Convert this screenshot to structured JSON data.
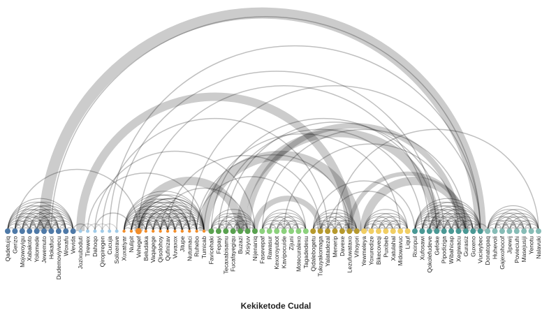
{
  "chart_data": {
    "type": "arc-diagram",
    "title": "Kekiketode Cudal",
    "groups": [
      {
        "color": "#4e79a7",
        "nodes": [
          "Qadetujiq",
          "Gerizo",
          "Mojowoyigu",
          "Xabakoto",
          "Yolomede",
          "Jewemuto",
          "Hokafuci",
          "Dudemoviyivecu",
          "Woxafu",
          "Vevida"
        ]
      },
      {
        "color": "#a0cbe8",
        "nodes": [
          "Jozixuboduti",
          "Tirewex",
          "Dahoqo",
          "Qiropiregen",
          "Cucuja",
          "Solixerave"
        ]
      },
      {
        "color": "#f28e2b",
        "nodes": [
          "Xuxatiyar",
          "Nulipit",
          "Vehegef",
          "Beludaka",
          "Vaqagege",
          "Qisolohoy",
          "Qufinizav",
          "Vuvaxox",
          "Jitupe",
          "Nutumaci",
          "Ruhebo",
          "Tumicab"
        ]
      },
      {
        "color": "#59a14f",
        "nodes": [
          "Favicehaki",
          "Fepayi",
          "Tecaxabisamu",
          "Fucafayegiqu",
          "Buzazi",
          "Xisiyuv",
          "Nijenaniq"
        ]
      },
      {
        "color": "#8cd17d",
        "nodes": [
          "Fasevepaf",
          "Rawasur",
          "Kexoroyubot",
          "Kavipocuide",
          "Zijuni",
          "Motecuralexo",
          "Tagadedesu"
        ]
      },
      {
        "color": "#b6992d",
        "nodes": [
          "Qidalebogetu",
          "Tukuyakomaga",
          "Yalatadezal",
          "Menerip",
          "Davexe",
          "Lezufuwataxo",
          "Vihoyori"
        ]
      },
      {
        "color": "#f1ce63",
        "nodes": [
          "Yewmeleya",
          "Yoxuredize",
          "Bikecoveqi",
          "Puxibeb",
          "Xatulahal",
          "Midowavuc",
          "Liquf"
        ]
      },
      {
        "color": "#499894",
        "nodes": [
          "Rixinpul",
          "Xufosawi",
          "Qokolefudeve",
          "Gefoke",
          "Pipodiziga",
          "Wibahicap",
          "Xegiwacu",
          "Gurasiz",
          "Guxeno",
          "Vucieybec"
        ]
      },
      {
        "color": "#86bcb6",
        "nodes": [
          "Donatopaq",
          "Huhevoli",
          "Gajexohocof",
          "Jipewij",
          "Povieciuhi",
          "Masejusiji",
          "Yenotu",
          "Nalavuki"
        ]
      }
    ],
    "links": [
      {
        "source": "Jewemuto",
        "target": "Vucieybec",
        "value": 8
      },
      {
        "source": "Jozixuboduti",
        "target": "Lezufuwataxo",
        "value": 6
      },
      {
        "source": "Vehegef",
        "target": "Buzazi",
        "value": 6
      },
      {
        "source": "Tumicab",
        "target": "Vihoyori",
        "value": 7
      },
      {
        "source": "Buzazi",
        "target": "Gefoke",
        "value": 6
      },
      {
        "source": "Xisiyuv",
        "target": "Xegiwacu",
        "value": 4
      },
      {
        "source": "Nijenaniq",
        "target": "Tukuyakomaga",
        "value": 4
      },
      {
        "source": "Yewmeleya",
        "target": "Gurasiz",
        "value": 6
      },
      {
        "source": "Lezufuwataxo",
        "target": "Gurasiz",
        "value": 3
      },
      {
        "source": "Hokafuci",
        "target": "Vucieybec",
        "value": 1
      },
      {
        "source": "Gerizo",
        "target": "Vehegef",
        "value": 1
      },
      {
        "source": "Cucuja",
        "target": "Vucieybec",
        "value": 1
      },
      {
        "source": "Solixerave",
        "target": "Gefoke",
        "value": 1
      },
      {
        "source": "Dahoqo",
        "target": "Nijenaniq",
        "value": 1
      },
      {
        "source": "Qiropiregen",
        "target": "Yalatadezal",
        "value": 1
      },
      {
        "source": "Vehegef",
        "target": "Qokolefudeve",
        "value": 1
      },
      {
        "source": "Qisolohoy",
        "target": "Xisiyuv",
        "value": 1
      },
      {
        "source": "Qufinizav",
        "target": "Tukuyakomaga",
        "value": 1
      },
      {
        "source": "Nutumaci",
        "target": "Vucieybec",
        "value": 1
      },
      {
        "source": "Ruhebo",
        "target": "Lezufuwataxo",
        "value": 1
      },
      {
        "source": "Tumicab",
        "target": "Midowavuc",
        "value": 1
      },
      {
        "source": "Fepayi",
        "target": "Xufosawi",
        "value": 1
      },
      {
        "source": "Favicehaki",
        "target": "Gefoke",
        "value": 1
      },
      {
        "source": "Tecaxabisamu",
        "target": "Pipodiziga",
        "value": 1
      },
      {
        "source": "Fasevepaf",
        "target": "Gurasiz",
        "value": 1
      },
      {
        "source": "Kavipocuide",
        "target": "Xegiwacu",
        "value": 1
      },
      {
        "source": "Qidalebogetu",
        "target": "Rixinpul",
        "value": 1
      },
      {
        "source": "Menerip",
        "target": "Nalavuki",
        "value": 1
      },
      {
        "source": "Tirewex",
        "target": "Tumicab",
        "value": 1
      },
      {
        "source": "Dahoqo",
        "target": "Nulipit",
        "value": 1
      },
      {
        "source": "Vehegef",
        "target": "Tumicab",
        "value": 1
      },
      {
        "source": "Beludaka",
        "target": "Nutumaci",
        "value": 1
      },
      {
        "source": "Ruhebo",
        "target": "Tagadedesu",
        "value": 1
      },
      {
        "source": "Yalatadezal",
        "target": "Liquf",
        "value": 1
      },
      {
        "source": "Vevida",
        "target": "Tirewex",
        "value": 1
      },
      {
        "source": "Guxeno",
        "target": "Donatopaq",
        "value": 1
      }
    ]
  }
}
